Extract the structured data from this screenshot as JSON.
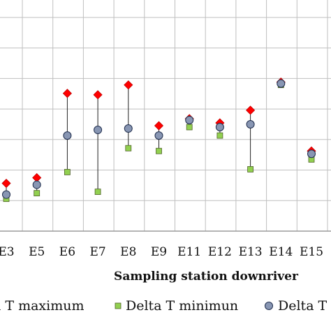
{
  "chart_data": {
    "type": "scatter",
    "title": "",
    "xlabel": "Sampling station  downriver",
    "ylabel": "",
    "categories": [
      "E3",
      "E5",
      "E6",
      "E7",
      "E8",
      "E9",
      "E11",
      "E12",
      "E13",
      "E14",
      "E15"
    ],
    "ylim": [
      0,
      7.6
    ],
    "grid": true,
    "legend_position": "bottom",
    "series": [
      {
        "name": "Delta T maximum",
        "marker": "diamond",
        "color": "#ff0000",
        "values": [
          1.7,
          1.9,
          4.9,
          4.85,
          5.2,
          3.75,
          4.0,
          3.85,
          4.3,
          5.3,
          2.85
        ]
      },
      {
        "name": "Delta T minimun",
        "marker": "square",
        "color": "#92d050",
        "values": [
          1.15,
          1.35,
          2.1,
          1.4,
          2.95,
          2.85,
          3.7,
          3.4,
          2.2,
          5.2,
          2.55
        ]
      },
      {
        "name": "Delta T",
        "marker": "circle",
        "color": "#8896b3",
        "values": [
          1.3,
          1.65,
          3.4,
          3.6,
          3.65,
          3.4,
          3.95,
          3.7,
          3.8,
          5.25,
          2.75
        ]
      }
    ]
  },
  "legend": {
    "items": [
      {
        "label": "a T maximum",
        "marker": "diamond",
        "color": "#ff0000"
      },
      {
        "label": "Delta T minimun",
        "marker": "square",
        "color": "#92d050"
      },
      {
        "label": "Delta T",
        "marker": "circle",
        "color": "#8896b3"
      }
    ]
  }
}
